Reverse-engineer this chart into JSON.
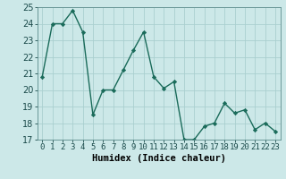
{
  "x": [
    0,
    1,
    2,
    3,
    4,
    5,
    6,
    7,
    8,
    9,
    10,
    11,
    12,
    13,
    14,
    15,
    16,
    17,
    18,
    19,
    20,
    21,
    22,
    23
  ],
  "y": [
    20.8,
    24.0,
    24.0,
    24.8,
    23.5,
    18.5,
    20.0,
    20.0,
    21.2,
    22.4,
    23.5,
    20.8,
    20.1,
    20.5,
    17.0,
    17.0,
    17.8,
    18.0,
    19.2,
    18.6,
    18.8,
    17.6,
    18.0,
    17.5
  ],
  "line_color": "#1a6b5a",
  "marker": "D",
  "marker_size": 2.2,
  "bg_color": "#cce8e8",
  "grid_color": "#aacfcf",
  "xlabel": "Humidex (Indice chaleur)",
  "ylim": [
    17,
    25
  ],
  "xlim": [
    -0.5,
    23.5
  ],
  "yticks": [
    17,
    18,
    19,
    20,
    21,
    22,
    23,
    24,
    25
  ],
  "xticks": [
    0,
    1,
    2,
    3,
    4,
    5,
    6,
    7,
    8,
    9,
    10,
    11,
    12,
    13,
    14,
    15,
    16,
    17,
    18,
    19,
    20,
    21,
    22,
    23
  ],
  "xlabel_fontsize": 7.5,
  "tick_fontsize": 6.5,
  "linewidth": 1.0
}
